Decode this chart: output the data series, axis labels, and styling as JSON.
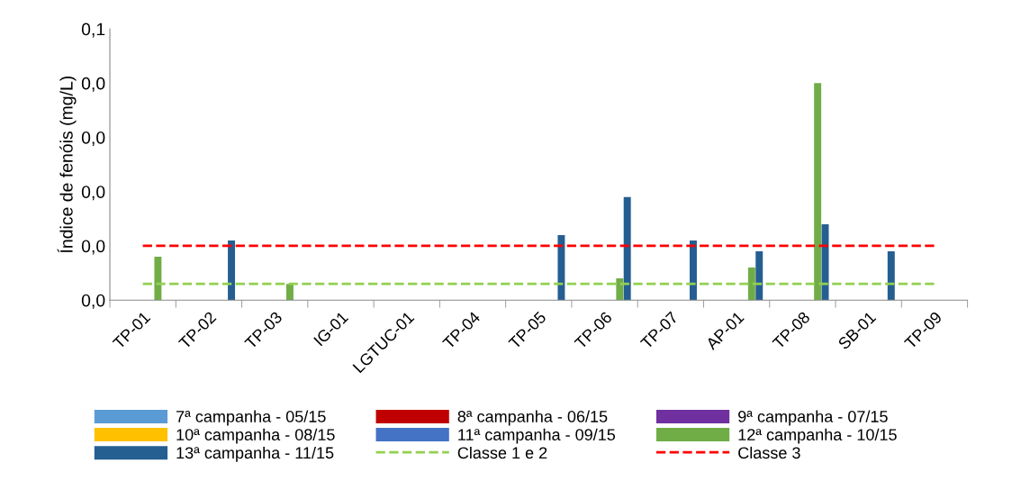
{
  "chart_data": {
    "type": "bar",
    "ylabel": "Índice de fenóis (mg/L)",
    "categories": [
      "TP-01",
      "TP-02",
      "TP-03",
      "IG-01",
      "LGTUC-01",
      "TP-04",
      "TP-05",
      "TP-06",
      "TP-07",
      "AP-01",
      "TP-08",
      "SB-01",
      "TP-09"
    ],
    "series": [
      {
        "name": "7ª campanha - 05/15",
        "color": "#5b9bd5",
        "values": [
          null,
          null,
          null,
          null,
          null,
          null,
          null,
          null,
          null,
          null,
          null,
          null,
          null
        ]
      },
      {
        "name": "8ª campanha - 06/15",
        "color": "#c00000",
        "values": [
          null,
          null,
          null,
          null,
          null,
          null,
          null,
          null,
          null,
          null,
          null,
          null,
          null
        ]
      },
      {
        "name": "9ª campanha - 07/15",
        "color": "#7030a0",
        "values": [
          null,
          null,
          null,
          null,
          null,
          null,
          null,
          null,
          null,
          null,
          null,
          null,
          null
        ]
      },
      {
        "name": "10ª campanha - 08/15",
        "color": "#ffc000",
        "values": [
          null,
          null,
          null,
          null,
          null,
          null,
          null,
          null,
          null,
          null,
          null,
          null,
          null
        ]
      },
      {
        "name": "11ª campanha - 09/15",
        "color": "#4472c4",
        "values": [
          null,
          null,
          null,
          null,
          null,
          null,
          null,
          null,
          null,
          null,
          null,
          null,
          null
        ]
      },
      {
        "name": "12ª campanha - 10/15",
        "color": "#70ad47",
        "values": [
          0.008,
          null,
          0.003,
          null,
          null,
          null,
          null,
          0.004,
          null,
          0.006,
          0.04,
          null,
          null
        ]
      },
      {
        "name": "13ª campanha - 11/15",
        "color": "#255e91",
        "values": [
          null,
          0.011,
          null,
          null,
          null,
          null,
          0.012,
          0.019,
          0.011,
          0.009,
          0.014,
          0.009,
          null
        ]
      }
    ],
    "ref_lines": [
      {
        "axis": "y",
        "value": 0.003,
        "label": "Classe 1 e 2",
        "color": "#92d050",
        "line_style": "dashed"
      },
      {
        "axis": "y",
        "value": 0.01,
        "label": "Classe 3",
        "color": "#ff0000",
        "line_style": "dashed"
      }
    ],
    "ylim": [
      0,
      0.05
    ],
    "yticks": [
      {
        "value": 0,
        "label": "0,0"
      },
      {
        "value": 0.01,
        "label": "0,0"
      },
      {
        "value": 0.02,
        "label": "0,0"
      },
      {
        "value": 0.03,
        "label": "0,0"
      },
      {
        "value": 0.04,
        "label": "0,0"
      },
      {
        "value": 0.05,
        "label": "0,1"
      }
    ],
    "legend": "bottom"
  }
}
